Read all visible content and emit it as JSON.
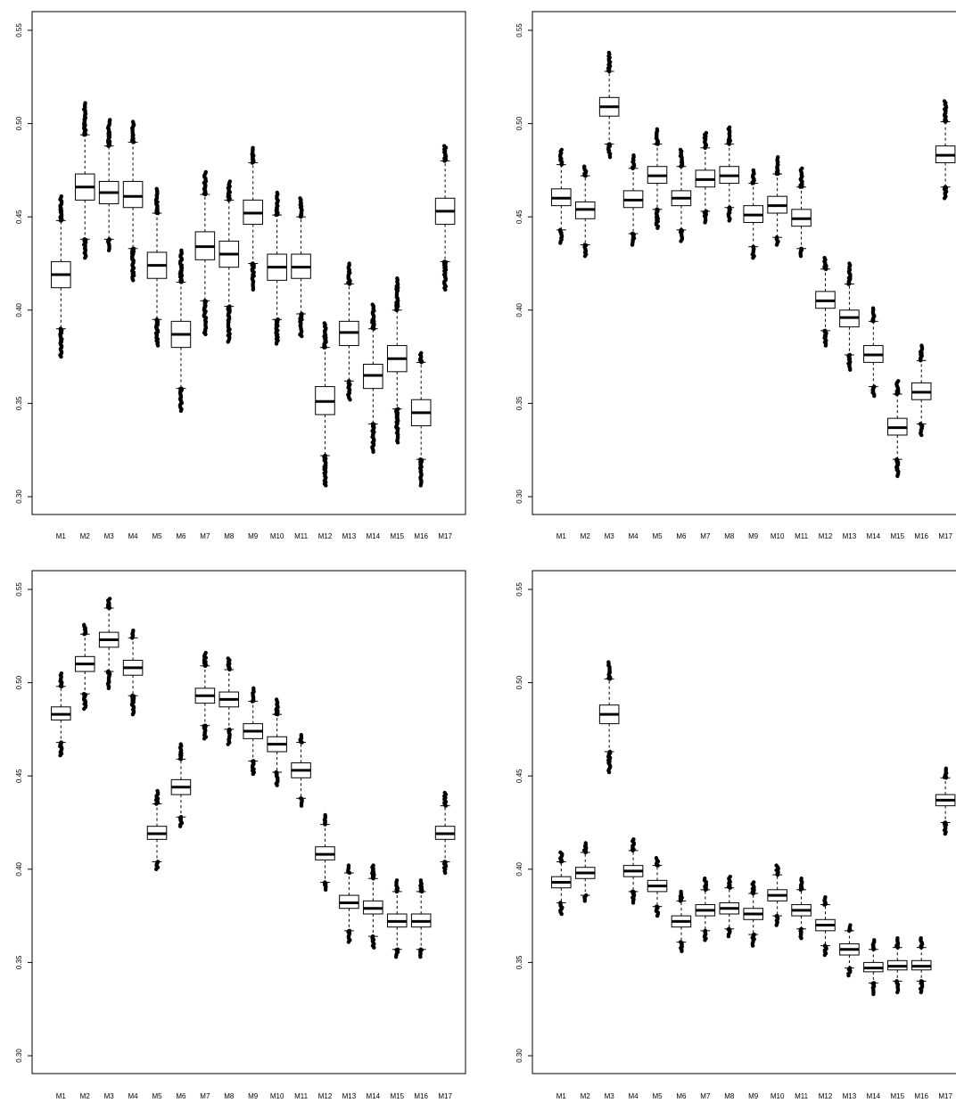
{
  "chart_data": [
    {
      "type": "box",
      "panel": "top-left",
      "categories": [
        "M1",
        "M2",
        "M3",
        "M4",
        "M5",
        "M6",
        "M7",
        "M8",
        "M9",
        "M10",
        "M11",
        "M12",
        "M13",
        "M14",
        "M15",
        "M16",
        "M17"
      ],
      "ylim": [
        0.3,
        0.55
      ],
      "yticks": [
        "0.30",
        "0.35",
        "0.40",
        "0.45",
        "0.50",
        "0.55"
      ],
      "grid": false,
      "boxes": [
        {
          "q1": 0.412,
          "median": 0.419,
          "q3": 0.426,
          "whisker_low": 0.39,
          "whisker_high": 0.448,
          "outlier_low": 0.375,
          "outlier_high": 0.461
        },
        {
          "q1": 0.459,
          "median": 0.466,
          "q3": 0.473,
          "whisker_low": 0.438,
          "whisker_high": 0.494,
          "outlier_low": 0.428,
          "outlier_high": 0.511
        },
        {
          "q1": 0.457,
          "median": 0.463,
          "q3": 0.469,
          "whisker_low": 0.438,
          "whisker_high": 0.488,
          "outlier_low": 0.432,
          "outlier_high": 0.502
        },
        {
          "q1": 0.455,
          "median": 0.461,
          "q3": 0.469,
          "whisker_low": 0.433,
          "whisker_high": 0.49,
          "outlier_low": 0.416,
          "outlier_high": 0.501
        },
        {
          "q1": 0.417,
          "median": 0.424,
          "q3": 0.431,
          "whisker_low": 0.395,
          "whisker_high": 0.452,
          "outlier_low": 0.381,
          "outlier_high": 0.465
        },
        {
          "q1": 0.38,
          "median": 0.387,
          "q3": 0.394,
          "whisker_low": 0.358,
          "whisker_high": 0.415,
          "outlier_low": 0.346,
          "outlier_high": 0.432
        },
        {
          "q1": 0.427,
          "median": 0.434,
          "q3": 0.442,
          "whisker_low": 0.405,
          "whisker_high": 0.462,
          "outlier_low": 0.387,
          "outlier_high": 0.474
        },
        {
          "q1": 0.423,
          "median": 0.43,
          "q3": 0.437,
          "whisker_low": 0.402,
          "whisker_high": 0.459,
          "outlier_low": 0.383,
          "outlier_high": 0.469
        },
        {
          "q1": 0.446,
          "median": 0.452,
          "q3": 0.459,
          "whisker_low": 0.425,
          "whisker_high": 0.479,
          "outlier_low": 0.411,
          "outlier_high": 0.487
        },
        {
          "q1": 0.416,
          "median": 0.423,
          "q3": 0.43,
          "whisker_low": 0.395,
          "whisker_high": 0.451,
          "outlier_low": 0.382,
          "outlier_high": 0.463
        },
        {
          "q1": 0.417,
          "median": 0.423,
          "q3": 0.43,
          "whisker_low": 0.398,
          "whisker_high": 0.45,
          "outlier_low": 0.386,
          "outlier_high": 0.46
        },
        {
          "q1": 0.344,
          "median": 0.351,
          "q3": 0.359,
          "whisker_low": 0.322,
          "whisker_high": 0.38,
          "outlier_low": 0.306,
          "outlier_high": 0.393
        },
        {
          "q1": 0.381,
          "median": 0.388,
          "q3": 0.394,
          "whisker_low": 0.362,
          "whisker_high": 0.414,
          "outlier_low": 0.352,
          "outlier_high": 0.425
        },
        {
          "q1": 0.358,
          "median": 0.365,
          "q3": 0.371,
          "whisker_low": 0.339,
          "whisker_high": 0.39,
          "outlier_low": 0.324,
          "outlier_high": 0.403
        },
        {
          "q1": 0.367,
          "median": 0.374,
          "q3": 0.381,
          "whisker_low": 0.347,
          "whisker_high": 0.4,
          "outlier_low": 0.329,
          "outlier_high": 0.417
        },
        {
          "q1": 0.338,
          "median": 0.345,
          "q3": 0.352,
          "whisker_low": 0.32,
          "whisker_high": 0.372,
          "outlier_low": 0.306,
          "outlier_high": 0.377
        },
        {
          "q1": 0.446,
          "median": 0.453,
          "q3": 0.46,
          "whisker_low": 0.426,
          "whisker_high": 0.48,
          "outlier_low": 0.411,
          "outlier_high": 0.488
        }
      ]
    },
    {
      "type": "box",
      "panel": "top-right",
      "categories": [
        "M1",
        "M2",
        "M3",
        "M4",
        "M5",
        "M6",
        "M7",
        "M8",
        "M9",
        "M10",
        "M11",
        "M12",
        "M13",
        "M14",
        "M15",
        "M16",
        "M17"
      ],
      "ylim": [
        0.3,
        0.55
      ],
      "yticks": [
        "0.30",
        "0.35",
        "0.40",
        "0.45",
        "0.50",
        "0.55"
      ],
      "grid": false,
      "boxes": [
        {
          "q1": 0.456,
          "median": 0.46,
          "q3": 0.465,
          "whisker_low": 0.443,
          "whisker_high": 0.478,
          "outlier_low": 0.436,
          "outlier_high": 0.486
        },
        {
          "q1": 0.449,
          "median": 0.454,
          "q3": 0.458,
          "whisker_low": 0.435,
          "whisker_high": 0.472,
          "outlier_low": 0.429,
          "outlier_high": 0.477
        },
        {
          "q1": 0.504,
          "median": 0.509,
          "q3": 0.514,
          "whisker_low": 0.489,
          "whisker_high": 0.528,
          "outlier_low": 0.482,
          "outlier_high": 0.538
        },
        {
          "q1": 0.455,
          "median": 0.459,
          "q3": 0.464,
          "whisker_low": 0.441,
          "whisker_high": 0.476,
          "outlier_low": 0.435,
          "outlier_high": 0.483
        },
        {
          "q1": 0.468,
          "median": 0.472,
          "q3": 0.477,
          "whisker_low": 0.454,
          "whisker_high": 0.489,
          "outlier_low": 0.444,
          "outlier_high": 0.497
        },
        {
          "q1": 0.456,
          "median": 0.46,
          "q3": 0.464,
          "whisker_low": 0.443,
          "whisker_high": 0.477,
          "outlier_low": 0.437,
          "outlier_high": 0.486
        },
        {
          "q1": 0.466,
          "median": 0.47,
          "q3": 0.475,
          "whisker_low": 0.453,
          "whisker_high": 0.487,
          "outlier_low": 0.447,
          "outlier_high": 0.495
        },
        {
          "q1": 0.468,
          "median": 0.472,
          "q3": 0.477,
          "whisker_low": 0.455,
          "whisker_high": 0.489,
          "outlier_low": 0.448,
          "outlier_high": 0.498
        },
        {
          "q1": 0.447,
          "median": 0.451,
          "q3": 0.456,
          "whisker_low": 0.434,
          "whisker_high": 0.468,
          "outlier_low": 0.428,
          "outlier_high": 0.475
        },
        {
          "q1": 0.452,
          "median": 0.456,
          "q3": 0.461,
          "whisker_low": 0.439,
          "whisker_high": 0.473,
          "outlier_low": 0.435,
          "outlier_high": 0.482
        },
        {
          "q1": 0.445,
          "median": 0.449,
          "q3": 0.454,
          "whisker_low": 0.433,
          "whisker_high": 0.466,
          "outlier_low": 0.429,
          "outlier_high": 0.476
        },
        {
          "q1": 0.401,
          "median": 0.405,
          "q3": 0.41,
          "whisker_low": 0.389,
          "whisker_high": 0.422,
          "outlier_low": 0.381,
          "outlier_high": 0.428
        },
        {
          "q1": 0.391,
          "median": 0.396,
          "q3": 0.4,
          "whisker_low": 0.376,
          "whisker_high": 0.414,
          "outlier_low": 0.368,
          "outlier_high": 0.425
        },
        {
          "q1": 0.372,
          "median": 0.376,
          "q3": 0.381,
          "whisker_low": 0.359,
          "whisker_high": 0.394,
          "outlier_low": 0.354,
          "outlier_high": 0.401
        },
        {
          "q1": 0.333,
          "median": 0.337,
          "q3": 0.342,
          "whisker_low": 0.32,
          "whisker_high": 0.355,
          "outlier_low": 0.311,
          "outlier_high": 0.362
        },
        {
          "q1": 0.352,
          "median": 0.356,
          "q3": 0.361,
          "whisker_low": 0.339,
          "whisker_high": 0.373,
          "outlier_low": 0.333,
          "outlier_high": 0.381
        },
        {
          "q1": 0.479,
          "median": 0.483,
          "q3": 0.488,
          "whisker_low": 0.466,
          "whisker_high": 0.501,
          "outlier_low": 0.46,
          "outlier_high": 0.512
        }
      ]
    },
    {
      "type": "box",
      "panel": "bottom-left",
      "categories": [
        "M1",
        "M2",
        "M3",
        "M4",
        "M5",
        "M6",
        "M7",
        "M8",
        "M9",
        "M10",
        "M11",
        "M12",
        "M13",
        "M14",
        "M15",
        "M16",
        "M17"
      ],
      "ylim": [
        0.3,
        0.55
      ],
      "yticks": [
        "0.30",
        "0.35",
        "0.40",
        "0.45",
        "0.50",
        "0.55"
      ],
      "grid": false,
      "boxes": [
        {
          "q1": 0.48,
          "median": 0.483,
          "q3": 0.487,
          "whisker_low": 0.468,
          "whisker_high": 0.498,
          "outlier_low": 0.461,
          "outlier_high": 0.505
        },
        {
          "q1": 0.506,
          "median": 0.51,
          "q3": 0.514,
          "whisker_low": 0.494,
          "whisker_high": 0.526,
          "outlier_low": 0.486,
          "outlier_high": 0.531
        },
        {
          "q1": 0.519,
          "median": 0.523,
          "q3": 0.527,
          "whisker_low": 0.506,
          "whisker_high": 0.54,
          "outlier_low": 0.497,
          "outlier_high": 0.545
        },
        {
          "q1": 0.504,
          "median": 0.508,
          "q3": 0.512,
          "whisker_low": 0.493,
          "whisker_high": 0.524,
          "outlier_low": 0.483,
          "outlier_high": 0.528
        },
        {
          "q1": 0.416,
          "median": 0.419,
          "q3": 0.423,
          "whisker_low": 0.404,
          "whisker_high": 0.435,
          "outlier_low": 0.4,
          "outlier_high": 0.442
        },
        {
          "q1": 0.44,
          "median": 0.444,
          "q3": 0.448,
          "whisker_low": 0.428,
          "whisker_high": 0.459,
          "outlier_low": 0.423,
          "outlier_high": 0.467
        },
        {
          "q1": 0.489,
          "median": 0.493,
          "q3": 0.497,
          "whisker_low": 0.477,
          "whisker_high": 0.509,
          "outlier_low": 0.47,
          "outlier_high": 0.516
        },
        {
          "q1": 0.487,
          "median": 0.491,
          "q3": 0.495,
          "whisker_low": 0.475,
          "whisker_high": 0.507,
          "outlier_low": 0.467,
          "outlier_high": 0.513
        },
        {
          "q1": 0.47,
          "median": 0.474,
          "q3": 0.478,
          "whisker_low": 0.458,
          "whisker_high": 0.49,
          "outlier_low": 0.451,
          "outlier_high": 0.497
        },
        {
          "q1": 0.463,
          "median": 0.467,
          "q3": 0.471,
          "whisker_low": 0.452,
          "whisker_high": 0.483,
          "outlier_low": 0.445,
          "outlier_high": 0.491
        },
        {
          "q1": 0.449,
          "median": 0.453,
          "q3": 0.457,
          "whisker_low": 0.438,
          "whisker_high": 0.468,
          "outlier_low": 0.434,
          "outlier_high": 0.472
        },
        {
          "q1": 0.405,
          "median": 0.408,
          "q3": 0.412,
          "whisker_low": 0.393,
          "whisker_high": 0.424,
          "outlier_low": 0.389,
          "outlier_high": 0.429
        },
        {
          "q1": 0.379,
          "median": 0.382,
          "q3": 0.386,
          "whisker_low": 0.367,
          "whisker_high": 0.398,
          "outlier_low": 0.361,
          "outlier_high": 0.402
        },
        {
          "q1": 0.376,
          "median": 0.379,
          "q3": 0.383,
          "whisker_low": 0.364,
          "whisker_high": 0.395,
          "outlier_low": 0.358,
          "outlier_high": 0.402
        },
        {
          "q1": 0.369,
          "median": 0.372,
          "q3": 0.376,
          "whisker_low": 0.357,
          "whisker_high": 0.388,
          "outlier_low": 0.353,
          "outlier_high": 0.394
        },
        {
          "q1": 0.369,
          "median": 0.372,
          "q3": 0.376,
          "whisker_low": 0.357,
          "whisker_high": 0.388,
          "outlier_low": 0.353,
          "outlier_high": 0.394
        },
        {
          "q1": 0.416,
          "median": 0.419,
          "q3": 0.423,
          "whisker_low": 0.404,
          "whisker_high": 0.434,
          "outlier_low": 0.398,
          "outlier_high": 0.441
        }
      ]
    },
    {
      "type": "box",
      "panel": "bottom-right",
      "categories": [
        "M1",
        "M2",
        "M3",
        "M4",
        "M5",
        "M6",
        "M7",
        "M8",
        "M9",
        "M10",
        "M11",
        "M12",
        "M13",
        "M14",
        "M15",
        "M16",
        "M17"
      ],
      "ylim": [
        0.3,
        0.55
      ],
      "yticks": [
        "0.30",
        "0.35",
        "0.40",
        "0.45",
        "0.50",
        "0.55"
      ],
      "grid": false,
      "boxes": [
        {
          "q1": 0.39,
          "median": 0.393,
          "q3": 0.396,
          "whisker_low": 0.382,
          "whisker_high": 0.404,
          "outlier_low": 0.376,
          "outlier_high": 0.409
        },
        {
          "q1": 0.395,
          "median": 0.398,
          "q3": 0.401,
          "whisker_low": 0.386,
          "whisker_high": 0.409,
          "outlier_low": 0.383,
          "outlier_high": 0.414
        },
        {
          "q1": 0.478,
          "median": 0.483,
          "q3": 0.488,
          "whisker_low": 0.463,
          "whisker_high": 0.502,
          "outlier_low": 0.452,
          "outlier_high": 0.511
        },
        {
          "q1": 0.396,
          "median": 0.399,
          "q3": 0.402,
          "whisker_low": 0.388,
          "whisker_high": 0.41,
          "outlier_low": 0.382,
          "outlier_high": 0.416
        },
        {
          "q1": 0.388,
          "median": 0.391,
          "q3": 0.394,
          "whisker_low": 0.38,
          "whisker_high": 0.402,
          "outlier_low": 0.375,
          "outlier_high": 0.406
        },
        {
          "q1": 0.369,
          "median": 0.372,
          "q3": 0.375,
          "whisker_low": 0.361,
          "whisker_high": 0.383,
          "outlier_low": 0.356,
          "outlier_high": 0.388
        },
        {
          "q1": 0.375,
          "median": 0.378,
          "q3": 0.381,
          "whisker_low": 0.367,
          "whisker_high": 0.389,
          "outlier_low": 0.362,
          "outlier_high": 0.395
        },
        {
          "q1": 0.376,
          "median": 0.379,
          "q3": 0.382,
          "whisker_low": 0.368,
          "whisker_high": 0.39,
          "outlier_low": 0.364,
          "outlier_high": 0.396
        },
        {
          "q1": 0.373,
          "median": 0.376,
          "q3": 0.379,
          "whisker_low": 0.365,
          "whisker_high": 0.387,
          "outlier_low": 0.359,
          "outlier_high": 0.393
        },
        {
          "q1": 0.383,
          "median": 0.386,
          "q3": 0.389,
          "whisker_low": 0.375,
          "whisker_high": 0.397,
          "outlier_low": 0.37,
          "outlier_high": 0.402
        },
        {
          "q1": 0.375,
          "median": 0.378,
          "q3": 0.381,
          "whisker_low": 0.368,
          "whisker_high": 0.389,
          "outlier_low": 0.363,
          "outlier_high": 0.395
        },
        {
          "q1": 0.367,
          "median": 0.37,
          "q3": 0.373,
          "whisker_low": 0.359,
          "whisker_high": 0.381,
          "outlier_low": 0.354,
          "outlier_high": 0.385
        },
        {
          "q1": 0.354,
          "median": 0.357,
          "q3": 0.36,
          "whisker_low": 0.347,
          "whisker_high": 0.367,
          "outlier_low": 0.343,
          "outlier_high": 0.37
        },
        {
          "q1": 0.345,
          "median": 0.347,
          "q3": 0.35,
          "whisker_low": 0.339,
          "whisker_high": 0.357,
          "outlier_low": 0.333,
          "outlier_high": 0.362
        },
        {
          "q1": 0.346,
          "median": 0.348,
          "q3": 0.351,
          "whisker_low": 0.34,
          "whisker_high": 0.358,
          "outlier_low": 0.334,
          "outlier_high": 0.363
        },
        {
          "q1": 0.346,
          "median": 0.348,
          "q3": 0.351,
          "whisker_low": 0.34,
          "whisker_high": 0.358,
          "outlier_low": 0.334,
          "outlier_high": 0.363
        },
        {
          "q1": 0.434,
          "median": 0.437,
          "q3": 0.44,
          "whisker_low": 0.425,
          "whisker_high": 0.449,
          "outlier_low": 0.419,
          "outlier_high": 0.454
        }
      ]
    }
  ]
}
